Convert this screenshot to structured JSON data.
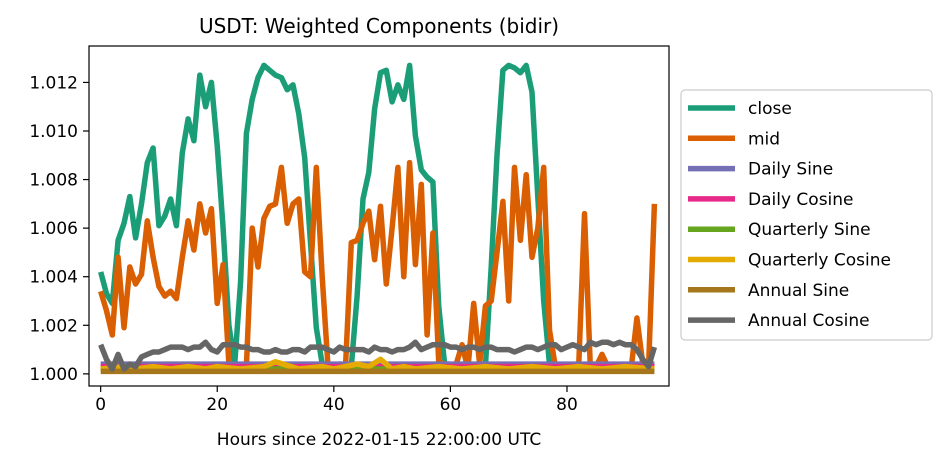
{
  "chart_data": {
    "type": "line",
    "title": "USDT: Weighted Components (bidir)",
    "xlabel": "Hours since 2022-01-15 22:00:00 UTC",
    "ylabel": "",
    "xlim": [
      -2,
      97.5
    ],
    "ylim": [
      0.9995,
      1.0135
    ],
    "xticks": [
      0,
      20,
      40,
      60,
      80
    ],
    "xtick_labels": [
      "0",
      "20",
      "40",
      "60",
      "80"
    ],
    "yticks": [
      1.0,
      1.002,
      1.004,
      1.006,
      1.008,
      1.01,
      1.012
    ],
    "ytick_labels": [
      "1.000",
      "1.002",
      "1.004",
      "1.006",
      "1.008",
      "1.010",
      "1.012"
    ],
    "grid": false,
    "legend_position": "outside-right",
    "series": [
      {
        "name": "close",
        "color": "#1b9e77",
        "x": [
          0,
          1,
          2,
          3,
          4,
          5,
          6,
          7,
          8,
          9,
          10,
          11,
          12,
          13,
          14,
          15,
          16,
          17,
          18,
          19,
          20,
          21,
          22,
          23,
          24,
          25,
          26,
          27,
          28,
          29,
          30,
          31,
          32,
          33,
          34,
          35,
          36,
          37,
          38,
          39,
          40,
          41,
          42,
          43,
          44,
          45,
          46,
          47,
          48,
          49,
          50,
          51,
          52,
          53,
          54,
          55,
          56,
          57,
          58,
          59,
          60,
          61,
          62,
          63,
          64,
          65,
          66,
          67,
          68,
          69,
          70,
          71,
          72,
          73,
          74,
          75,
          76,
          77,
          78,
          79,
          80,
          81,
          82,
          83,
          84,
          85,
          86,
          87,
          88,
          89,
          90,
          91,
          92,
          93,
          94,
          95
        ],
        "y": [
          1.0042,
          1.0033,
          1.0029,
          1.0055,
          1.0062,
          1.0073,
          1.0056,
          1.007,
          1.0087,
          1.0093,
          1.0061,
          1.0065,
          1.0072,
          1.0061,
          1.0091,
          1.0105,
          1.0096,
          1.0123,
          1.011,
          1.012,
          1.0094,
          1.006,
          1.002,
          1.0004,
          1.0038,
          1.0099,
          1.0113,
          1.0122,
          1.0127,
          1.0125,
          1.0123,
          1.0122,
          1.0117,
          1.0119,
          1.0107,
          1.0089,
          1.0054,
          1.0019,
          1.0004,
          1.0003,
          1.0002,
          1.0004,
          1.0002,
          1.0003,
          1.0032,
          1.0072,
          1.0083,
          1.0109,
          1.0124,
          1.0125,
          1.0112,
          1.0119,
          1.0113,
          1.0127,
          1.0098,
          1.0084,
          1.0081,
          1.0079,
          1.0028,
          1.0004,
          1.0004,
          1.0003,
          1.0004,
          1.0003,
          1.0003,
          1.0003,
          1.0003,
          1.0044,
          1.009,
          1.0125,
          1.0127,
          1.0126,
          1.0124,
          1.0127,
          1.0116,
          1.0073,
          1.003,
          1.0004,
          1.0003,
          1.0003,
          1.0003,
          1.0003,
          1.0003,
          1.0003,
          1.0003,
          1.0003,
          1.0003,
          1.0003,
          1.0003,
          1.0003,
          1.0003,
          1.0003,
          1.0003,
          1.0003,
          1.0003,
          1.0003
        ]
      },
      {
        "name": "mid",
        "color": "#d95f02",
        "x": [
          0,
          1,
          2,
          3,
          4,
          5,
          6,
          7,
          8,
          9,
          10,
          11,
          12,
          13,
          14,
          15,
          16,
          17,
          18,
          19,
          20,
          21,
          22,
          23,
          24,
          25,
          26,
          27,
          28,
          29,
          30,
          31,
          32,
          33,
          34,
          35,
          36,
          37,
          38,
          39,
          40,
          41,
          42,
          43,
          44,
          45,
          46,
          47,
          48,
          49,
          50,
          51,
          52,
          53,
          54,
          55,
          56,
          57,
          58,
          59,
          60,
          61,
          62,
          63,
          64,
          65,
          66,
          67,
          68,
          69,
          70,
          71,
          72,
          73,
          74,
          75,
          76,
          77,
          78,
          79,
          80,
          81,
          82,
          83,
          84,
          85,
          86,
          87,
          88,
          89,
          90,
          91,
          92,
          93,
          94,
          95
        ],
        "y": [
          1.0034,
          1.0026,
          1.0016,
          1.0048,
          1.0019,
          1.0044,
          1.0037,
          1.0041,
          1.0063,
          1.0048,
          1.0036,
          1.0032,
          1.0034,
          1.0031,
          1.0048,
          1.0063,
          1.0051,
          1.007,
          1.0058,
          1.0068,
          1.0029,
          1.0045,
          1.0004,
          1.0002,
          1.0002,
          1.0003,
          1.006,
          1.0044,
          1.0064,
          1.0069,
          1.007,
          1.0085,
          1.0062,
          1.007,
          1.0072,
          1.0042,
          1.004,
          1.0085,
          1.004,
          1.0003,
          1.0002,
          1.0004,
          1.0003,
          1.0054,
          1.0055,
          1.0062,
          1.0067,
          1.0047,
          1.0069,
          1.0037,
          1.006,
          1.0085,
          1.004,
          1.0087,
          1.0045,
          1.0078,
          1.0016,
          1.0058,
          1.0005,
          1.0004,
          1.0003,
          1.0004,
          1.0012,
          1.0002,
          1.0029,
          1.0004,
          1.0028,
          1.003,
          1.005,
          1.0071,
          1.003,
          1.0085,
          1.0055,
          1.0082,
          1.0048,
          1.006,
          1.0085,
          1.0018,
          1.0003,
          1.0002,
          1.0003,
          1.0003,
          1.0002,
          1.0066,
          1.0003,
          1.0003,
          1.0008,
          1.0003,
          1.0004,
          1.0002,
          1.0003,
          1.0002,
          1.0023,
          1.0004,
          1.0003,
          1.007
        ]
      },
      {
        "name": "Daily Sine",
        "color": "#7570b3",
        "x": [
          0,
          95
        ],
        "y": [
          1.0004,
          1.0004
        ]
      },
      {
        "name": "Daily Cosine",
        "color": "#e7298a",
        "x": [
          0,
          95
        ],
        "y": [
          1.0003,
          1.0003
        ]
      },
      {
        "name": "Quarterly Sine",
        "color": "#66a61e",
        "x": [
          0,
          95
        ],
        "y": [
          1.0002,
          1.0002
        ]
      },
      {
        "name": "Quarterly Cosine",
        "color": "#e6ab02",
        "x": [
          0,
          4,
          6,
          9,
          12,
          15,
          18,
          20,
          24,
          28,
          30,
          34,
          38,
          40,
          44,
          46,
          48,
          50,
          52,
          54,
          58,
          62,
          66,
          70,
          74,
          78,
          82,
          86,
          90,
          95
        ],
        "y": [
          1.0002,
          1.0003,
          1.0002,
          1.0003,
          1.0002,
          1.0003,
          1.0002,
          1.0003,
          1.0002,
          1.0003,
          1.0005,
          1.0002,
          1.0003,
          1.0002,
          1.0004,
          1.0003,
          1.0006,
          1.0002,
          1.0003,
          1.0002,
          1.0003,
          1.0002,
          1.0003,
          1.0002,
          1.0003,
          1.0002,
          1.0003,
          1.0002,
          1.0003,
          1.0002
        ]
      },
      {
        "name": "Annual Sine",
        "color": "#a6761d",
        "x": [
          0,
          95
        ],
        "y": [
          1.0001,
          1.0001
        ]
      },
      {
        "name": "Annual Cosine",
        "color": "#666666",
        "x": [
          0,
          1,
          2,
          3,
          4,
          5,
          6,
          7,
          8,
          9,
          10,
          11,
          12,
          13,
          14,
          15,
          16,
          17,
          18,
          19,
          20,
          21,
          22,
          23,
          24,
          25,
          26,
          27,
          28,
          29,
          30,
          31,
          32,
          33,
          34,
          35,
          36,
          37,
          38,
          39,
          40,
          41,
          42,
          43,
          44,
          45,
          46,
          47,
          48,
          49,
          50,
          51,
          52,
          53,
          54,
          55,
          56,
          57,
          58,
          59,
          60,
          61,
          62,
          63,
          64,
          65,
          66,
          67,
          68,
          69,
          70,
          71,
          72,
          73,
          74,
          75,
          76,
          77,
          78,
          79,
          80,
          81,
          82,
          83,
          84,
          85,
          86,
          87,
          88,
          89,
          90,
          91,
          92,
          93,
          94,
          95
        ],
        "y": [
          1.0012,
          1.0006,
          1.0002,
          1.0008,
          1.0002,
          1.0004,
          1.0003,
          1.0007,
          1.0008,
          1.0009,
          1.0009,
          1.001,
          1.0011,
          1.0011,
          1.0011,
          1.001,
          1.0011,
          1.0011,
          1.0013,
          1.001,
          1.0009,
          1.0012,
          1.0012,
          1.0012,
          1.0011,
          1.0011,
          1.001,
          1.001,
          1.0009,
          1.0009,
          1.001,
          1.0009,
          1.0009,
          1.001,
          1.001,
          1.0009,
          1.0011,
          1.0011,
          1.0011,
          1.001,
          1.0009,
          1.0011,
          1.001,
          1.001,
          1.001,
          1.001,
          1.0009,
          1.0011,
          1.001,
          1.001,
          1.0009,
          1.001,
          1.001,
          1.0011,
          1.0013,
          1.001,
          1.0011,
          1.0012,
          1.0012,
          1.0012,
          1.0011,
          1.0011,
          1.001,
          1.0011,
          1.0011,
          1.001,
          1.0011,
          1.0011,
          1.001,
          1.001,
          1.001,
          1.0009,
          1.001,
          1.0011,
          1.0011,
          1.001,
          1.0011,
          1.0012,
          1.0012,
          1.001,
          1.0011,
          1.0012,
          1.0011,
          1.001,
          1.0013,
          1.0012,
          1.0013,
          1.0013,
          1.0012,
          1.0013,
          1.0012,
          1.0012,
          1.001,
          1.0006,
          1.0003,
          1.0011
        ]
      }
    ]
  }
}
